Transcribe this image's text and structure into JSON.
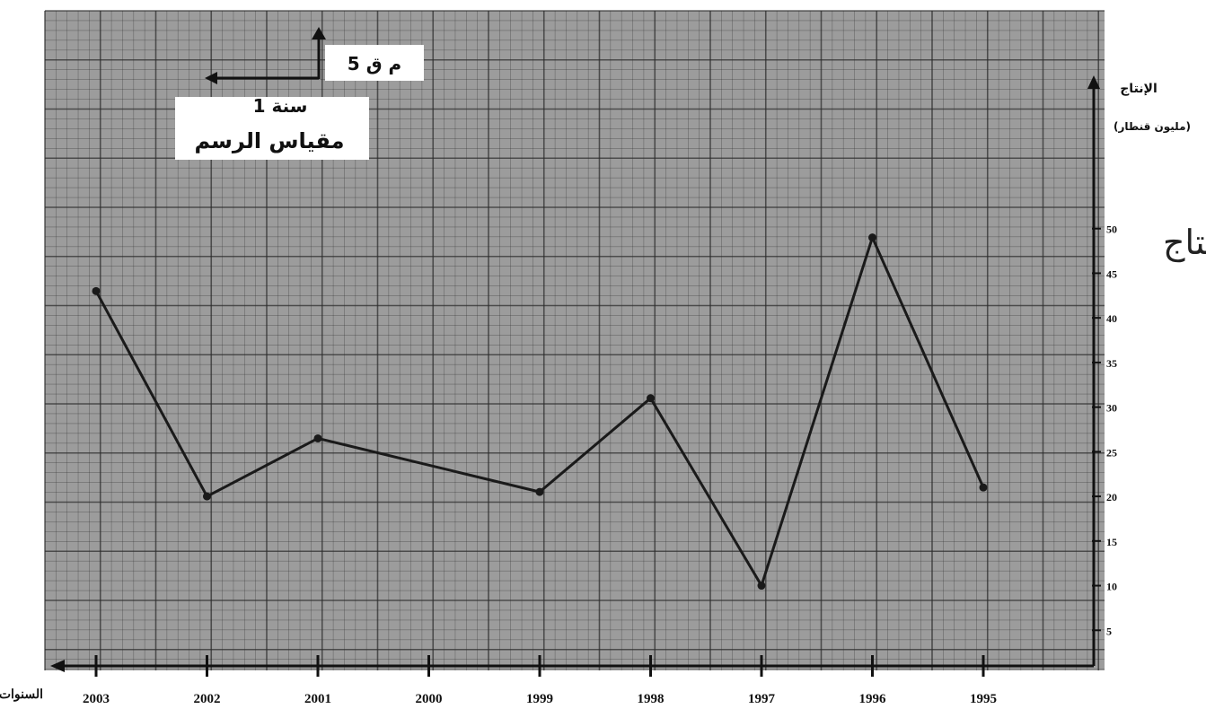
{
  "chart_data": {
    "type": "line",
    "x": [
      1995,
      1996,
      1997,
      1998,
      1999,
      2001,
      2002,
      2003
    ],
    "x_ticks": [
      "1995",
      "1996",
      "1997",
      "1998",
      "1999",
      "2000",
      "2001",
      "2002",
      "2003"
    ],
    "x_order": "right-to-left",
    "values": [
      21,
      49,
      10,
      31,
      20.5,
      26.5,
      20,
      43
    ],
    "y_ticks": [
      "5",
      "10",
      "15",
      "20",
      "25",
      "30",
      "35",
      "40",
      "45",
      "50"
    ],
    "ylim": [
      0,
      55
    ],
    "xlabel": "السنوات",
    "ylabel_line1": "الإنتاج",
    "ylabel_line2": "(مليون قنطار)",
    "grid": true,
    "line_color": "#1a1a1a",
    "paper_color": "#9c9c9c",
    "scale_box": {
      "vertical_label": "5 م ق",
      "horizontal_label": "1 سنة",
      "title": "مقياس الرسم"
    },
    "cut_off_text": "نتاج"
  }
}
